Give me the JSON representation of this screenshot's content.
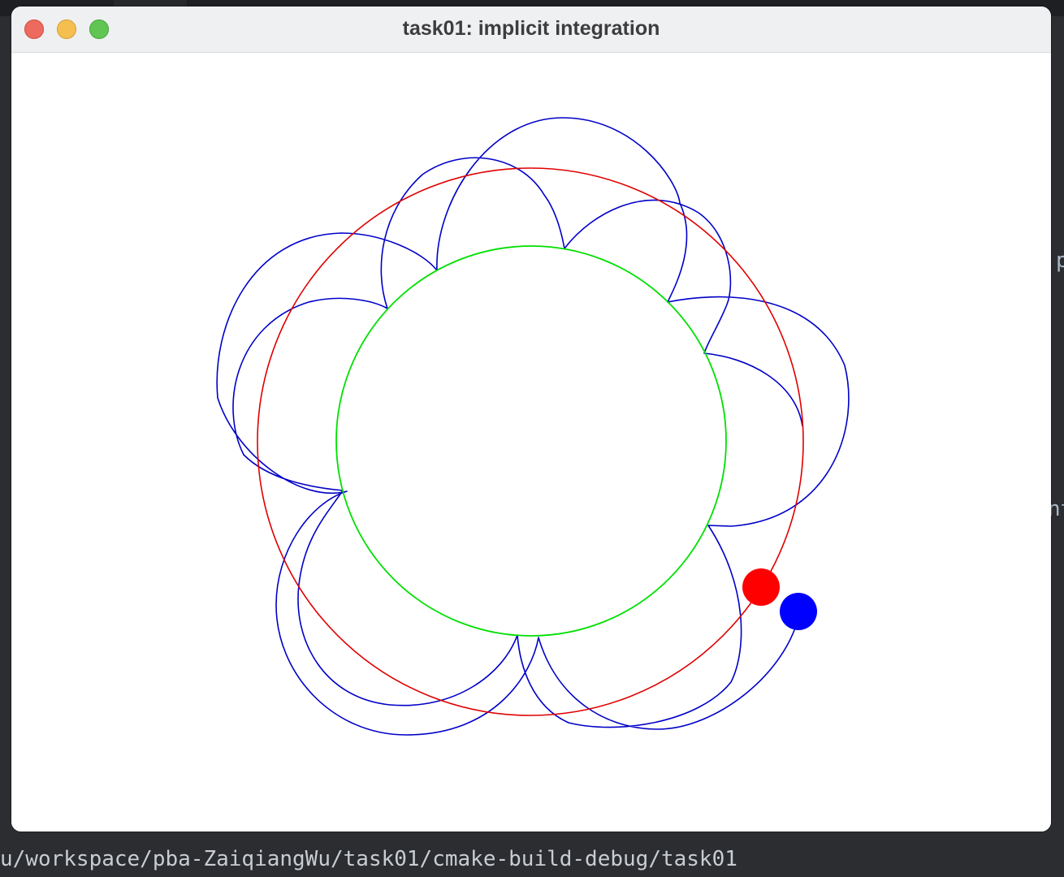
{
  "window": {
    "title": "task01: implicit integration"
  },
  "terminal": {
    "path": "u/workspace/pba-ZaiqiangWu/task01/cmake-build-debug/task01"
  },
  "background_fragments": {
    "right_char_1": "p",
    "right_char_2": "nt"
  },
  "colors": {
    "trajectory": "#0000c8",
    "red_orbit": "#e00000",
    "green_orbit": "#00e000",
    "red_particle": "#ff0000",
    "blue_particle": "#0000ff",
    "close_button": "#ec6a5e",
    "minimize_button": "#f4bf4f",
    "maximize_button": "#61c554"
  }
}
